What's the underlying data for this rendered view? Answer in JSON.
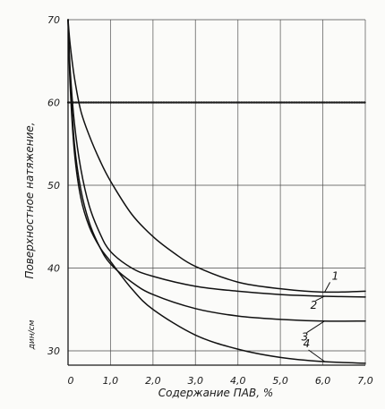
{
  "chart_data": {
    "type": "line",
    "xlabel": "Содержание ПАВ, %",
    "ylabel": "Поверхностное натяжение,",
    "ylabel_unit": "дин/см",
    "xlim": [
      0,
      7.0
    ],
    "ylim": [
      27.5,
      70
    ],
    "x_ticks": [
      "0",
      "1,0",
      "2,0",
      "3,0",
      "4,0",
      "5,0",
      "6,0",
      "7,0"
    ],
    "y_ticks": [
      "30",
      "40",
      "50",
      "60",
      "70"
    ],
    "grid": true,
    "reference_line": {
      "y": 60
    },
    "series": [
      {
        "name": "1",
        "x": [
          0,
          0.05,
          0.15,
          0.3,
          0.5,
          0.75,
          1.0,
          1.5,
          2.0,
          2.5,
          3.0,
          4.0,
          5.0,
          6.0,
          7.0
        ],
        "y": [
          70,
          67,
          63,
          59,
          56,
          53,
          50.5,
          46.5,
          43.8,
          41.8,
          40.2,
          38.3,
          37.5,
          37.1,
          37.2
        ]
      },
      {
        "name": "2",
        "x": [
          0,
          0.05,
          0.15,
          0.3,
          0.5,
          0.75,
          1.0,
          1.5,
          2.0,
          3.0,
          4.0,
          5.0,
          6.0,
          7.0
        ],
        "y": [
          70,
          64,
          57.5,
          52,
          47.5,
          44.2,
          42,
          40,
          39,
          37.8,
          37.2,
          36.8,
          36.6,
          36.5
        ]
      },
      {
        "name": "3",
        "x": [
          0,
          0.05,
          0.15,
          0.3,
          0.5,
          0.75,
          1.0,
          1.5,
          2.0,
          3.0,
          4.0,
          5.0,
          6.0,
          7.0
        ],
        "y": [
          70,
          63,
          55,
          49.5,
          45.5,
          42.5,
          40.5,
          38.3,
          36.8,
          35.1,
          34.2,
          33.8,
          33.6,
          33.6
        ]
      },
      {
        "name": "4",
        "x": [
          0,
          0.05,
          0.15,
          0.3,
          0.5,
          0.75,
          1.0,
          1.5,
          2.0,
          3.0,
          4.0,
          5.0,
          6.0,
          7.0
        ],
        "y": [
          70,
          62,
          54,
          48.5,
          45,
          42.5,
          40.8,
          37.5,
          35,
          31.9,
          30.2,
          29.2,
          28.7,
          28.5
        ]
      }
    ]
  }
}
